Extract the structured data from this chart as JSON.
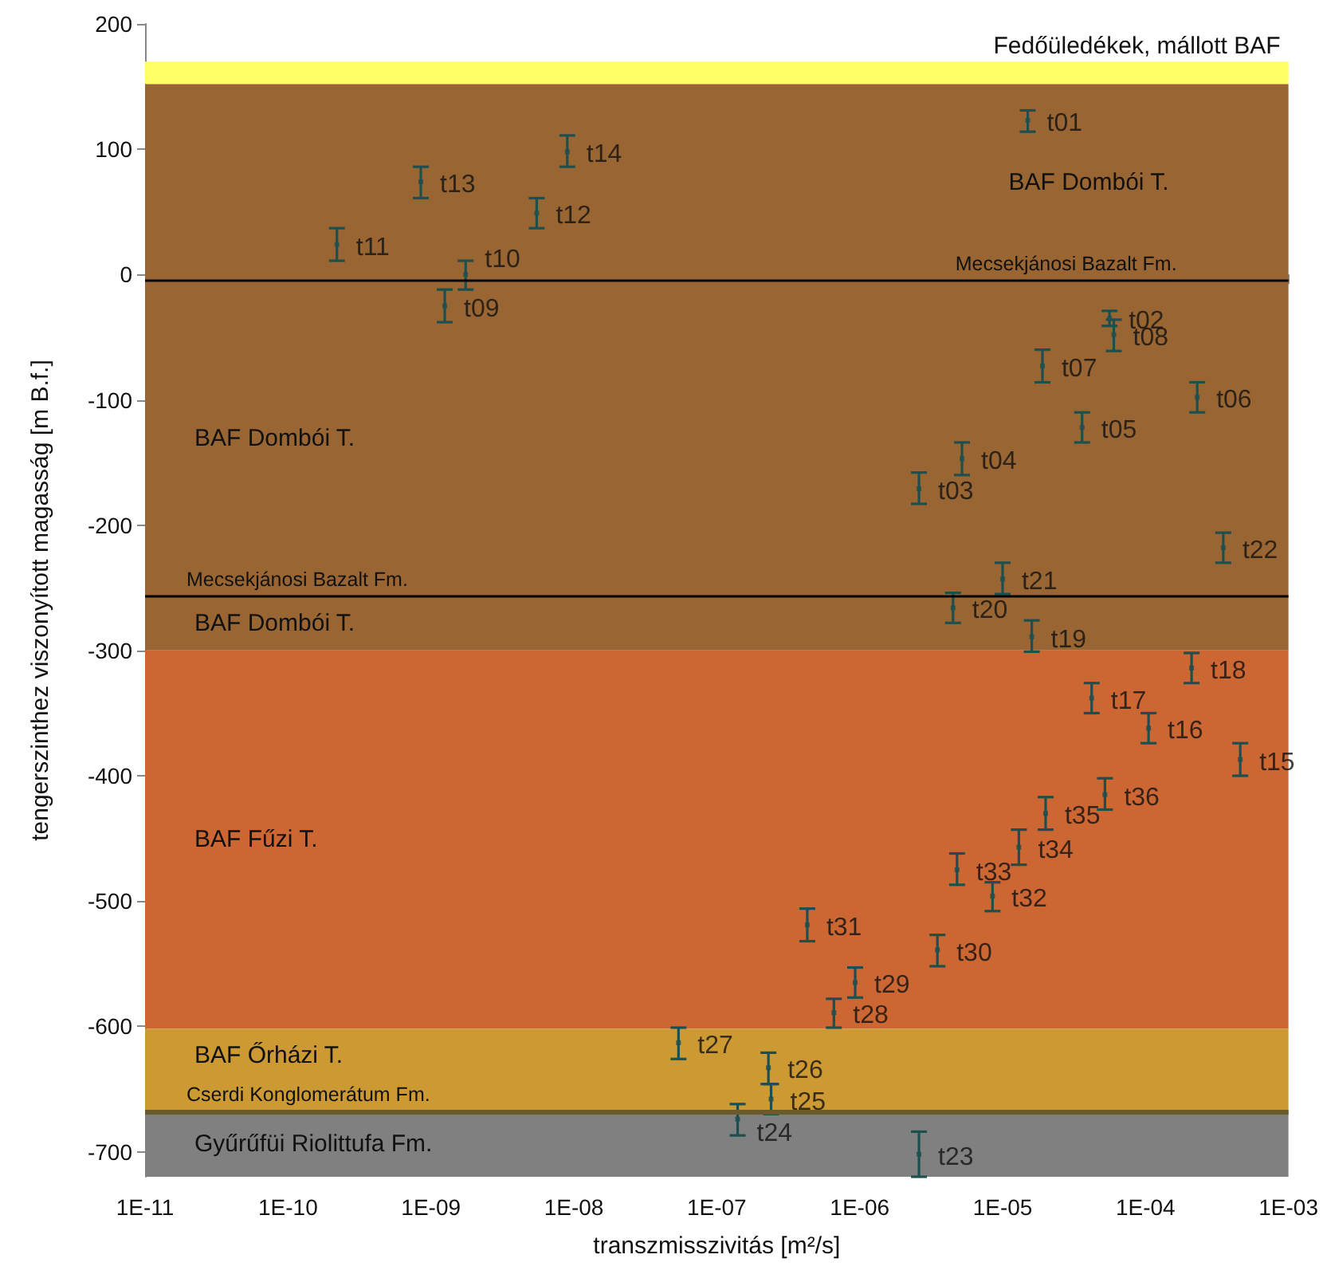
{
  "chart_data": {
    "type": "scatter",
    "xlabel": "transzmisszivitás [m²/s]",
    "ylabel": "tengerszinthez viszonyított magasság [m B.f.]",
    "log": "x",
    "xlim": [
      1e-11,
      0.001
    ],
    "ylim": [
      -720,
      200
    ],
    "xticks": [
      {
        "value": 1e-11,
        "label": "1E-11"
      },
      {
        "value": 1e-10,
        "label": "1E-10"
      },
      {
        "value": 1e-09,
        "label": "1E-09"
      },
      {
        "value": 1e-08,
        "label": "1E-08"
      },
      {
        "value": 1e-07,
        "label": "1E-07"
      },
      {
        "value": 1e-06,
        "label": "1E-06"
      },
      {
        "value": 1e-05,
        "label": "1E-05"
      },
      {
        "value": 0.0001,
        "label": "1E-04"
      },
      {
        "value": 0.001,
        "label": "1E-03"
      }
    ],
    "yticks": [
      -700,
      -600,
      -500,
      -400,
      -300,
      -200,
      -100,
      0,
      100,
      200
    ],
    "bands": [
      {
        "axis": "y",
        "from": 152,
        "to": 170,
        "label": "Fedőüledékek, mállott BAF",
        "color": "#ffff66"
      },
      {
        "axis": "y",
        "from": -5,
        "to": 152,
        "label": "BAF Dombói T.",
        "color": "#996633"
      },
      {
        "axis": "y",
        "from": -257,
        "to": -5,
        "label": "BAF Dombói T.",
        "color": "#996633"
      },
      {
        "axis": "y",
        "from": -300,
        "to": -257,
        "label": "BAF Dombói T.",
        "color": "#996633"
      },
      {
        "axis": "y",
        "from": -602,
        "to": -300,
        "label": "BAF Fűzi T.",
        "color": "#cc6633"
      },
      {
        "axis": "y",
        "from": -668,
        "to": -602,
        "label": "BAF Őrházi T.",
        "color": "#cc9933"
      },
      {
        "axis": "y",
        "from": -720,
        "to": -668,
        "label": "Gyűrűfüi Riolittufa Fm.",
        "color": "#808080"
      }
    ],
    "ref_lines": [
      {
        "axis": "y",
        "value": -5,
        "label": "Mecsekjánosi Bazalt Fm.",
        "color": "#000000"
      },
      {
        "axis": "y",
        "value": -257,
        "label": "Mecsekjánosi Bazalt Fm.",
        "color": "#000000"
      },
      {
        "axis": "y",
        "value": -668,
        "label": "Cserdi Konglomerátum Fm.",
        "color": "#6b5a2a"
      }
    ],
    "series": [
      {
        "color": "#1d4f4f",
        "x": [
          1.5e-05,
          5.6e-05,
          2.6e-06,
          5.2e-06,
          3.6e-05,
          0.00023,
          1.9e-05,
          6e-05,
          1.25e-09,
          1.75e-09,
          2.2e-10,
          5.5e-09,
          8.5e-10,
          9e-09,
          0.00046,
          0.000105,
          4.2e-05,
          0.00021,
          1.6e-05,
          4.5e-06,
          1e-05,
          0.00035,
          2.6e-06,
          1.4e-07,
          2.4e-07,
          2.3e-07,
          5.4e-08,
          6.6e-07,
          9.3e-07,
          3.5e-06,
          4.3e-07,
          8.5e-06,
          4.8e-06,
          1.3e-05,
          2e-05,
          5.2e-05
        ],
        "values": [
          123,
          -35,
          -171,
          -147,
          -122,
          -98,
          -73,
          -48,
          -25,
          0,
          24,
          49,
          74,
          98,
          -387,
          -362,
          -338,
          -314,
          -289,
          -266,
          -243,
          -218,
          -702,
          -674,
          -658,
          -633,
          -613,
          -589,
          -565,
          -539,
          -519,
          -496,
          -475,
          -457,
          -430,
          -415
        ],
        "errors": [
          [
            114,
            131
          ],
          [
            -41,
            -29
          ],
          [
            -183,
            -158
          ],
          [
            -160,
            -134
          ],
          [
            -134,
            -110
          ],
          [
            -110,
            -86
          ],
          [
            -86,
            -60
          ],
          [
            -61,
            -36
          ],
          [
            -38,
            -12
          ],
          [
            -12,
            11
          ],
          [
            11,
            37
          ],
          [
            37,
            61
          ],
          [
            61,
            86
          ],
          [
            86,
            111
          ],
          [
            -400,
            -374
          ],
          [
            -374,
            -350
          ],
          [
            -350,
            -326
          ],
          [
            -326,
            -302
          ],
          [
            -301,
            -276
          ],
          [
            -278,
            -254
          ],
          [
            -255,
            -230
          ],
          [
            -230,
            -206
          ],
          [
            -720,
            -684
          ],
          [
            -687,
            -662
          ],
          [
            -670,
            -646
          ],
          [
            -646,
            -621
          ],
          [
            -626,
            -601
          ],
          [
            -601,
            -578
          ],
          [
            -577,
            -553
          ],
          [
            -552,
            -527
          ],
          [
            -532,
            -506
          ],
          [
            -508,
            -485
          ],
          [
            -487,
            -462
          ],
          [
            -471,
            -443
          ],
          [
            -443,
            -417
          ],
          [
            -427,
            -402
          ]
        ]
      }
    ],
    "annotations": [
      {
        "text": "t01",
        "x": 1.5e-05,
        "y": 123
      },
      {
        "text": "t02",
        "x": 5.6e-05,
        "y": -35
      },
      {
        "text": "t03",
        "x": 2.6e-06,
        "y": -171
      },
      {
        "text": "t04",
        "x": 5.2e-06,
        "y": -147
      },
      {
        "text": "t05",
        "x": 3.6e-05,
        "y": -122
      },
      {
        "text": "t06",
        "x": 0.00023,
        "y": -98
      },
      {
        "text": "t07",
        "x": 1.9e-05,
        "y": -73
      },
      {
        "text": "t08",
        "x": 6e-05,
        "y": -48
      },
      {
        "text": "t09",
        "x": 1.25e-09,
        "y": -25
      },
      {
        "text": "t10",
        "x": 1.75e-09,
        "y": 0
      },
      {
        "text": "t11",
        "x": 2.2e-10,
        "y": 24
      },
      {
        "text": "t12",
        "x": 5.5e-09,
        "y": 49
      },
      {
        "text": "t13",
        "x": 8.5e-10,
        "y": 74
      },
      {
        "text": "t14",
        "x": 9e-09,
        "y": 98
      },
      {
        "text": "t15",
        "x": 0.00046,
        "y": -387
      },
      {
        "text": "t16",
        "x": 0.000105,
        "y": -362
      },
      {
        "text": "t17",
        "x": 4.2e-05,
        "y": -338
      },
      {
        "text": "t18",
        "x": 0.00021,
        "y": -314
      },
      {
        "text": "t19",
        "x": 1.6e-05,
        "y": -289
      },
      {
        "text": "t20",
        "x": 4.5e-06,
        "y": -266
      },
      {
        "text": "t21",
        "x": 1e-05,
        "y": -243
      },
      {
        "text": "t22",
        "x": 0.00035,
        "y": -218
      },
      {
        "text": "t23",
        "x": 2.6e-06,
        "y": -702
      },
      {
        "text": "t24",
        "x": 1.4e-07,
        "y": -674
      },
      {
        "text": "t25",
        "x": 2.4e-07,
        "y": -658
      },
      {
        "text": "t26",
        "x": 2.3e-07,
        "y": -633
      },
      {
        "text": "t27",
        "x": 5.4e-08,
        "y": -613
      },
      {
        "text": "t28",
        "x": 6.6e-07,
        "y": -589
      },
      {
        "text": "t29",
        "x": 9.3e-07,
        "y": -565
      },
      {
        "text": "t30",
        "x": 3.5e-06,
        "y": -539
      },
      {
        "text": "t31",
        "x": 4.3e-07,
        "y": -519
      },
      {
        "text": "t32",
        "x": 8.5e-06,
        "y": -496
      },
      {
        "text": "t33",
        "x": 4.8e-06,
        "y": -475
      },
      {
        "text": "t34",
        "x": 1.3e-05,
        "y": -457
      },
      {
        "text": "t35",
        "x": 2e-05,
        "y": -430
      },
      {
        "text": "t36",
        "x": 5.2e-05,
        "y": -415
      }
    ]
  }
}
